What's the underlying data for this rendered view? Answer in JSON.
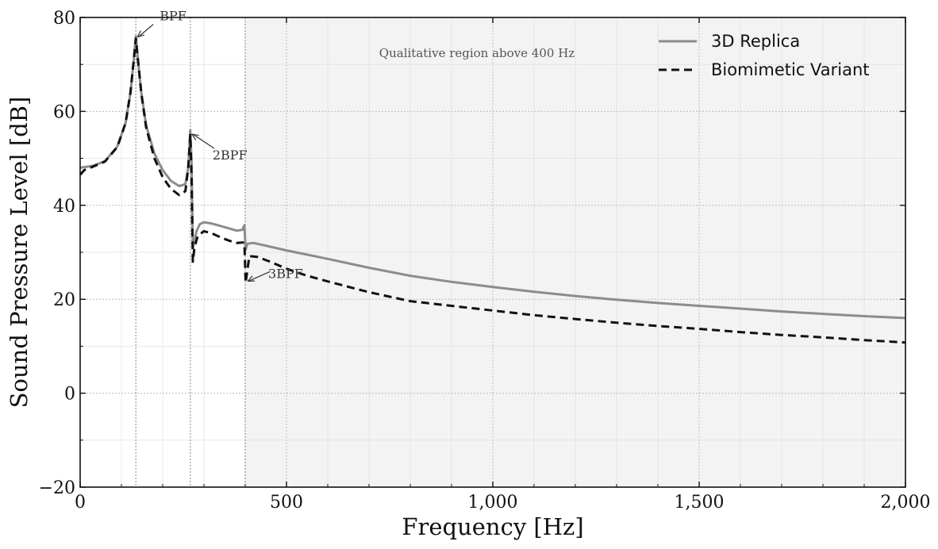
{
  "chart_data": {
    "type": "line",
    "xlabel": "Frequency [Hz]",
    "ylabel": "Sound Pressure Level [dB]",
    "xlim": [
      0,
      2000
    ],
    "ylim": [
      -20,
      80
    ],
    "x_ticks": [
      0,
      500,
      1000,
      1500,
      2000
    ],
    "x_tick_labels": [
      "0",
      "500",
      "1,000",
      "1,500",
      "2,000"
    ],
    "y_ticks": [
      -20,
      0,
      20,
      40,
      60,
      80
    ],
    "y_tick_labels": [
      "−20",
      "0",
      "20",
      "40",
      "60",
      "80"
    ],
    "grid": true,
    "legend_position": "top-right",
    "shaded_region": {
      "x_start": 400,
      "x_end": 2000,
      "label": "Qualitative region above 400 Hz",
      "color": "#f3f3f3"
    },
    "vertical_markers": [
      135,
      267,
      400
    ],
    "annotations": [
      {
        "text": "BPF",
        "x": 135,
        "y": 75.5
      },
      {
        "text": "2BPF",
        "x": 267,
        "y": 55.5
      },
      {
        "text": "3BPF",
        "x": 402,
        "y": 23.5
      }
    ],
    "series": [
      {
        "name": "3D Replica",
        "color": "#8c8c8c",
        "dash": "solid",
        "points": [
          [
            0,
            48
          ],
          [
            30,
            48.4
          ],
          [
            60,
            49.4
          ],
          [
            90,
            52.5
          ],
          [
            110,
            57.5
          ],
          [
            122,
            64
          ],
          [
            130,
            71
          ],
          [
            135,
            76
          ],
          [
            140,
            71
          ],
          [
            148,
            64
          ],
          [
            160,
            57
          ],
          [
            180,
            51
          ],
          [
            200,
            47.5
          ],
          [
            220,
            45.2
          ],
          [
            240,
            44.1
          ],
          [
            255,
            44.5
          ],
          [
            262,
            48
          ],
          [
            267,
            56
          ],
          [
            270,
            49
          ],
          [
            273,
            31
          ],
          [
            276,
            32
          ],
          [
            282,
            34.5
          ],
          [
            290,
            36
          ],
          [
            300,
            36.4
          ],
          [
            320,
            36.1
          ],
          [
            340,
            35.6
          ],
          [
            360,
            35.1
          ],
          [
            380,
            34.6
          ],
          [
            393,
            34.8
          ],
          [
            398,
            35.8
          ],
          [
            401,
            30.5
          ],
          [
            405,
            31.8
          ],
          [
            420,
            32
          ],
          [
            450,
            31.4
          ],
          [
            500,
            30.4
          ],
          [
            600,
            28.6
          ],
          [
            700,
            26.7
          ],
          [
            800,
            25
          ],
          [
            900,
            23.7
          ],
          [
            1000,
            22.6
          ],
          [
            1100,
            21.6
          ],
          [
            1200,
            20.7
          ],
          [
            1300,
            19.9
          ],
          [
            1400,
            19.2
          ],
          [
            1500,
            18.6
          ],
          [
            1600,
            18
          ],
          [
            1700,
            17.4
          ],
          [
            1800,
            16.9
          ],
          [
            1900,
            16.4
          ],
          [
            2000,
            16
          ]
        ]
      },
      {
        "name": "Biomimetic Variant",
        "color": "#111111",
        "dash": "dashed",
        "points": [
          [
            0,
            46.5
          ],
          [
            10,
            47.5
          ],
          [
            30,
            48.2
          ],
          [
            60,
            49.3
          ],
          [
            90,
            52.4
          ],
          [
            110,
            57.5
          ],
          [
            122,
            64
          ],
          [
            130,
            71
          ],
          [
            135,
            75.5
          ],
          [
            140,
            71
          ],
          [
            148,
            64
          ],
          [
            160,
            56.5
          ],
          [
            180,
            50
          ],
          [
            200,
            46
          ],
          [
            220,
            43.5
          ],
          [
            240,
            42.2
          ],
          [
            255,
            43
          ],
          [
            262,
            48
          ],
          [
            267,
            55
          ],
          [
            270,
            46
          ],
          [
            273,
            28
          ],
          [
            277,
            31
          ],
          [
            285,
            33.5
          ],
          [
            300,
            34.5
          ],
          [
            320,
            34
          ],
          [
            340,
            33.2
          ],
          [
            360,
            32.5
          ],
          [
            380,
            32
          ],
          [
            393,
            32.1
          ],
          [
            398,
            32
          ],
          [
            401,
            23.5
          ],
          [
            405,
            26
          ],
          [
            410,
            29.2
          ],
          [
            430,
            29
          ],
          [
            460,
            28
          ],
          [
            500,
            26.5
          ],
          [
            550,
            25
          ],
          [
            600,
            23.8
          ],
          [
            700,
            21.5
          ],
          [
            800,
            19.6
          ],
          [
            900,
            18.6
          ],
          [
            1000,
            17.6
          ],
          [
            1100,
            16.6
          ],
          [
            1200,
            15.8
          ],
          [
            1300,
            15
          ],
          [
            1400,
            14.3
          ],
          [
            1500,
            13.7
          ],
          [
            1600,
            13
          ],
          [
            1700,
            12.4
          ],
          [
            1800,
            11.9
          ],
          [
            1900,
            11.3
          ],
          [
            2000,
            10.8
          ]
        ]
      }
    ]
  }
}
